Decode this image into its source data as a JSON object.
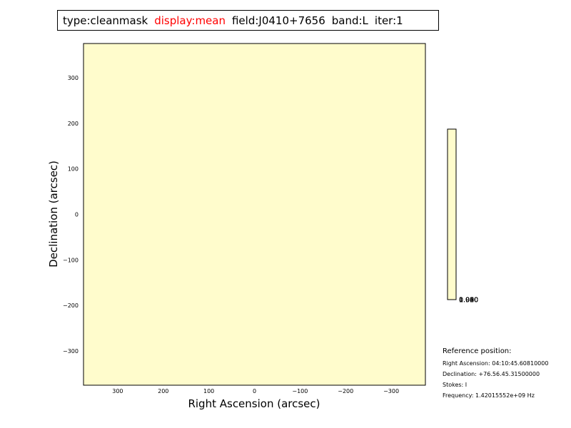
{
  "title_parts": {
    "type": "type:cleanmask",
    "display": "display:mean",
    "field": "field:J0410+7656",
    "band": "band:L",
    "iter": "iter:1"
  },
  "colors": {
    "image_fill": "#fffccc",
    "highlight_text": "#ff0000",
    "frame": "#000000"
  },
  "chart_data": {
    "type": "heatmap",
    "xlabel": "Right Ascension (arcsec)",
    "ylabel": "Declination (arcsec)",
    "xlim": [
      375,
      -375
    ],
    "ylim": [
      -375,
      375
    ],
    "x_ticks": [
      300,
      200,
      100,
      0,
      -100,
      -200,
      -300
    ],
    "y_ticks": [
      300,
      200,
      100,
      0,
      -100,
      -200,
      -300
    ],
    "x_tick_labels": [
      "300",
      "200",
      "100",
      "0",
      "−100",
      "−200",
      "−300"
    ],
    "y_tick_labels": [
      "300",
      "200",
      "100",
      "0",
      "−100",
      "−200",
      "−300"
    ],
    "constant_value": 1.0,
    "colorbar": {
      "tick_labels": [
        "0.960",
        "0.980",
        "1.000",
        "1.020",
        "1.040"
      ],
      "color": "#fffccc"
    }
  },
  "reference": {
    "heading": "Reference position:",
    "ra": "Right Ascension: 04:10:45.60810000",
    "dec": "Declination: +76.56.45.31500000",
    "stokes": "Stokes: I",
    "frequency": "Frequency: 1.42015552e+09 Hz"
  }
}
